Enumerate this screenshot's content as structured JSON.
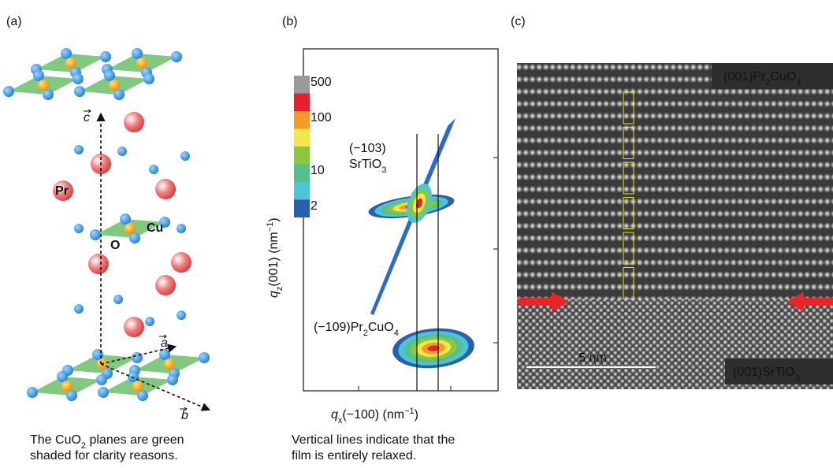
{
  "panel_a": {
    "label": "(a)",
    "vectors": {
      "c": [
        {
          "it": "c"
        }
      ],
      "a": [
        {
          "it": "a"
        }
      ],
      "b": [
        {
          "it": "b"
        }
      ]
    },
    "atoms": {
      "pr": "Pr",
      "cu": "Cu",
      "o": "O"
    },
    "caption": [
      [
        "The CuO",
        {
          "sub": "2"
        },
        " planes are green"
      ],
      [
        "shaded for clarity reasons."
      ]
    ]
  },
  "panel_b": {
    "label": "(b)",
    "colorbar_labels": [
      "500",
      "100",
      "10",
      "2"
    ],
    "peak_upper": [
      [
        "(−103)"
      ],
      [
        "SrTiO",
        {
          "sub": "3"
        }
      ]
    ],
    "peak_lower": [
      "(−109)Pr",
      {
        "sub": "2"
      },
      "CuO",
      {
        "sub": "4"
      }
    ],
    "y_label": [
      {
        "it": "q"
      },
      {
        "sub": "z"
      },
      "(001) (nm",
      {
        "sup": "−1"
      },
      ")"
    ],
    "x_label": [
      {
        "it": "q"
      },
      {
        "sub": "x"
      },
      "(−100) (nm",
      {
        "sup": "−1"
      },
      ")"
    ],
    "caption": [
      [
        "Vertical lines indicate that the"
      ],
      [
        "film is entirely relaxed."
      ]
    ]
  },
  "panel_c": {
    "label": "(c)",
    "top_label": [
      "(001)Pr",
      {
        "sub": "2"
      },
      "CuO",
      {
        "sub": "4"
      }
    ],
    "bottom_label": [
      "(001)SrTiO",
      {
        "sub": "3"
      }
    ],
    "scale_bar": "5 nm"
  }
}
